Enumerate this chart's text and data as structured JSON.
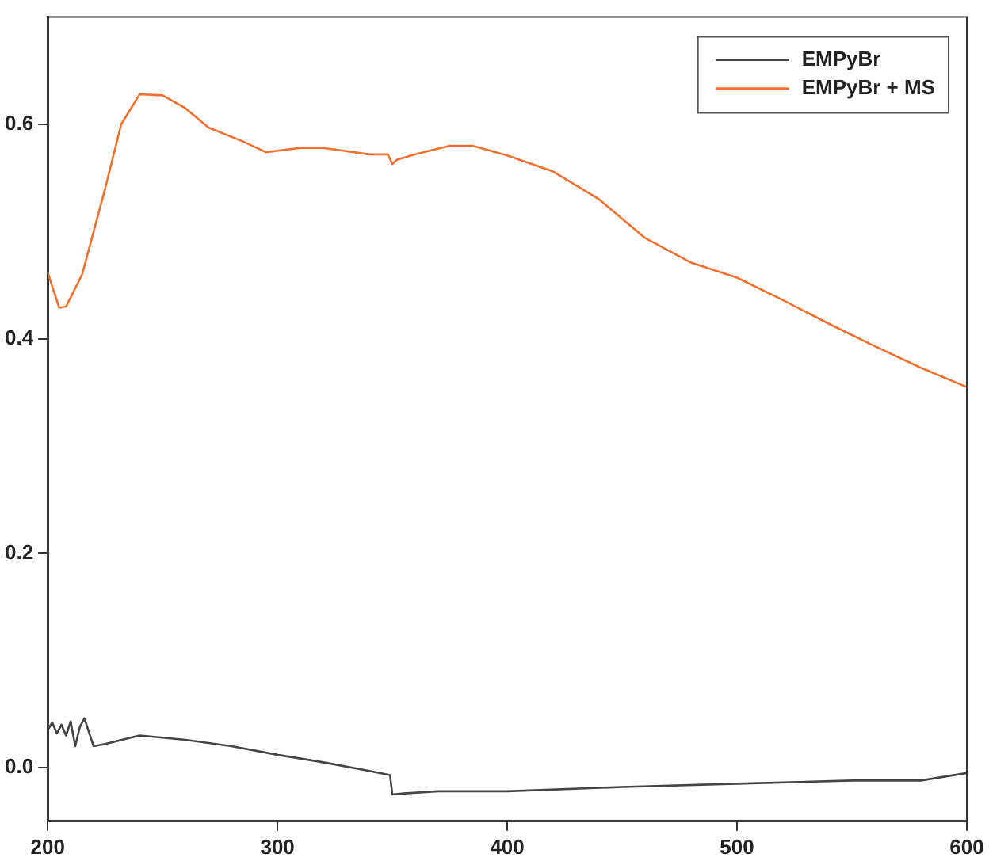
{
  "chart_data": {
    "type": "line",
    "xlim": [
      200,
      600
    ],
    "xticks": [
      200,
      300,
      400,
      500,
      600
    ],
    "ylim": [
      -0.05,
      0.7
    ],
    "yticks": [
      {
        "value": 0,
        "label": "0.0"
      },
      0.2,
      0.4,
      0.6
    ],
    "grid": false,
    "legend": "top right",
    "marker": "none",
    "line_style": "solid",
    "series": [
      {
        "name": "EMPyBr",
        "color": "#444444",
        "x": [
          200,
          202,
          204,
          206,
          208,
          210,
          212,
          214,
          216,
          220,
          225,
          240,
          260,
          280,
          300,
          320,
          340,
          349,
          350,
          355,
          370,
          400,
          450,
          500,
          550,
          580,
          600
        ],
        "values": [
          0.035,
          0.042,
          0.032,
          0.04,
          0.03,
          0.043,
          0.02,
          0.038,
          0.046,
          0.02,
          0.022,
          0.03,
          0.026,
          0.02,
          0.012,
          0.005,
          -0.003,
          -0.007,
          -0.025,
          -0.024,
          -0.022,
          -0.022,
          -0.018,
          -0.015,
          -0.012,
          -0.012,
          -0.005
        ]
      },
      {
        "name": "EMPyBr + MS",
        "color": "#f07030",
        "x": [
          200,
          205,
          208,
          215,
          225,
          232,
          240,
          250,
          260,
          270,
          285,
          295,
          310,
          320,
          340,
          348,
          350,
          352,
          360,
          375,
          385,
          400,
          420,
          440,
          460,
          480,
          500,
          520,
          540,
          560,
          580,
          600
        ],
        "values": [
          0.462,
          0.429,
          0.43,
          0.46,
          0.54,
          0.6,
          0.628,
          0.627,
          0.615,
          0.597,
          0.584,
          0.574,
          0.578,
          0.578,
          0.572,
          0.572,
          0.563,
          0.567,
          0.572,
          0.58,
          0.58,
          0.571,
          0.556,
          0.53,
          0.494,
          0.471,
          0.457,
          0.436,
          0.414,
          0.393,
          0.373,
          0.355
        ]
      }
    ]
  }
}
